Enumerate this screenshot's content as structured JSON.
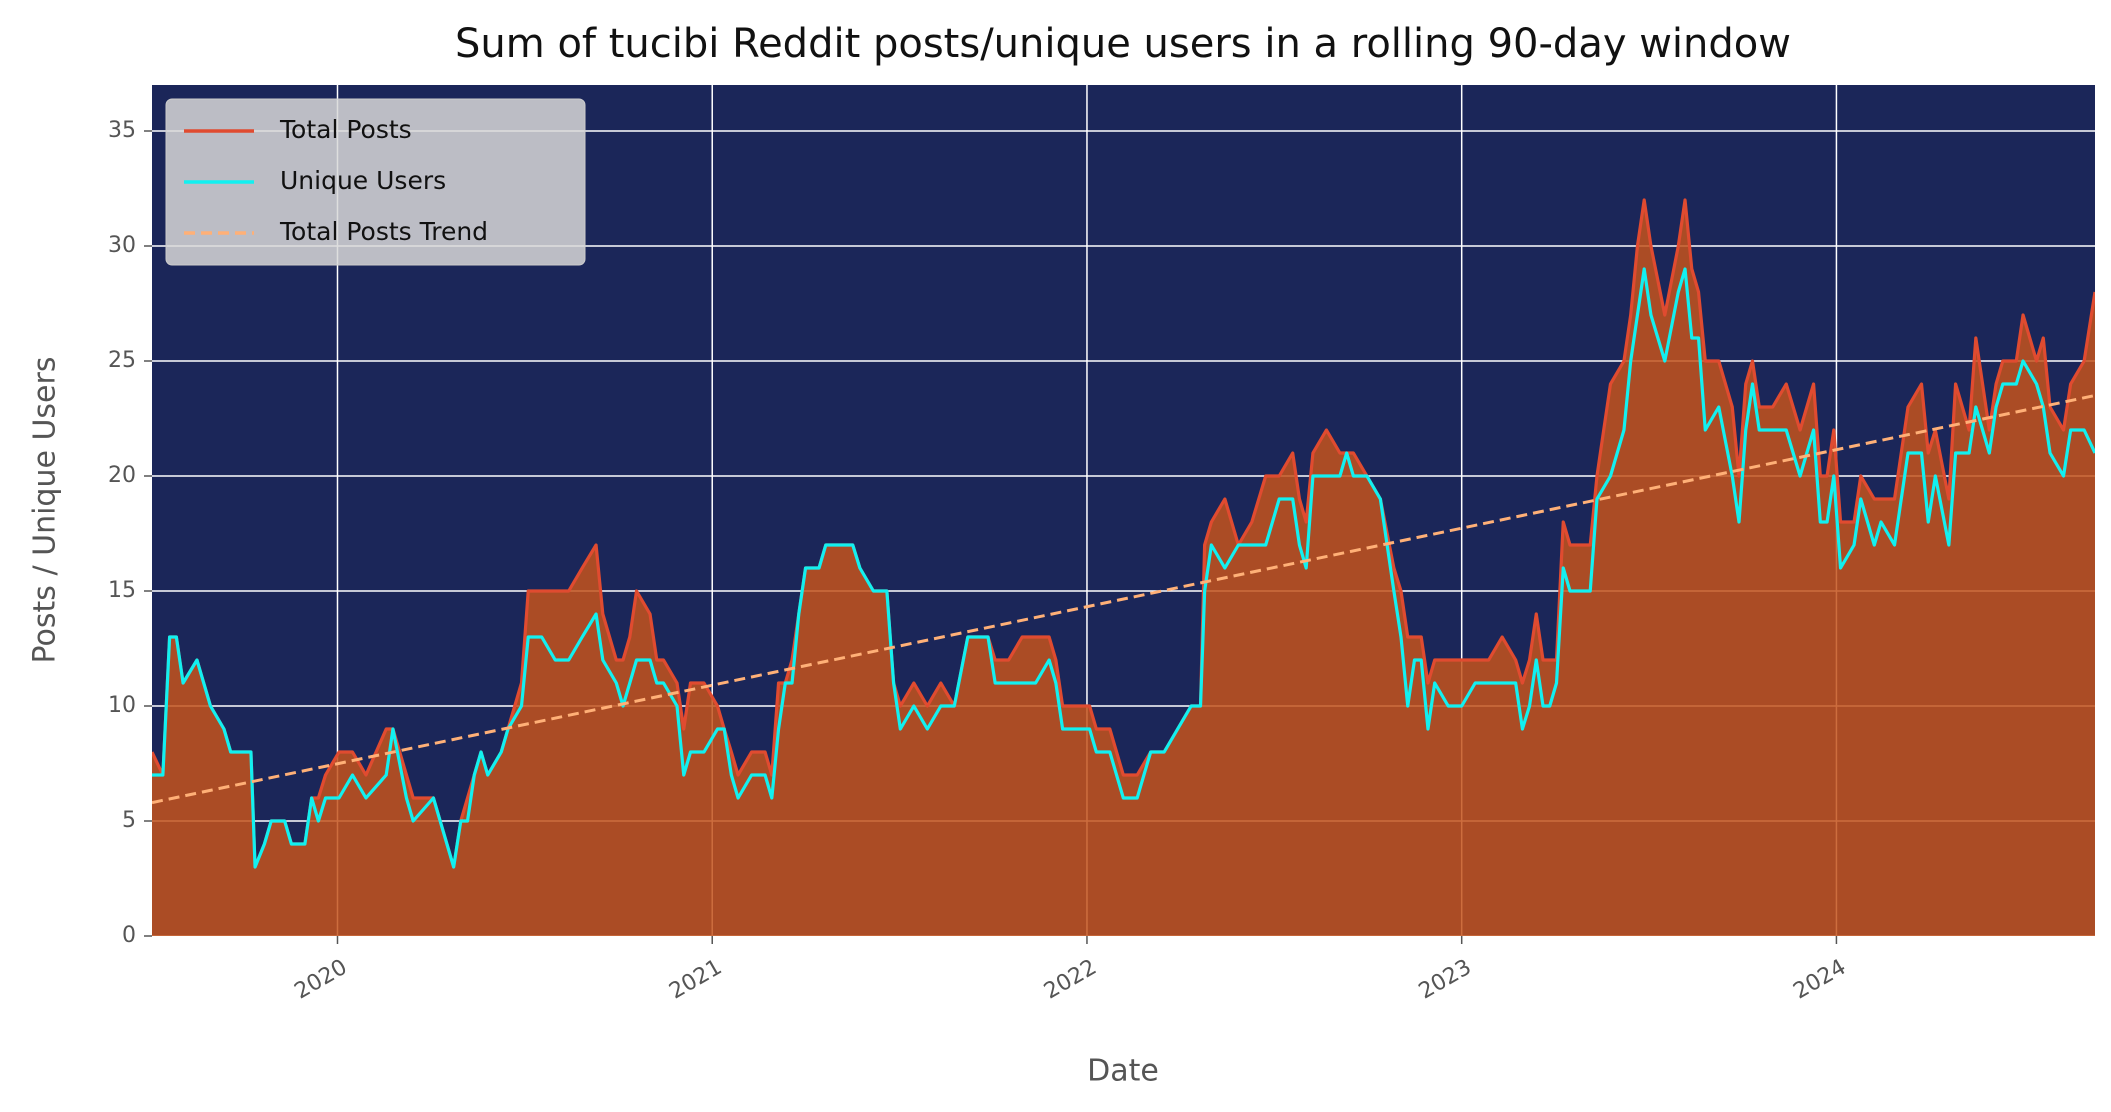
{
  "chart_data": {
    "type": "line",
    "title": "Sum of tucibi Reddit posts/unique users in a rolling 90-day window",
    "xlabel": "Date",
    "ylabel": "Posts / Unique Users",
    "xlim": [
      2019.505,
      2024.69
    ],
    "xticks": [
      2020,
      2021,
      2022,
      2023,
      2024
    ],
    "ylim": [
      0,
      37
    ],
    "yticks": [
      0,
      5,
      10,
      15,
      20,
      25,
      30,
      35
    ],
    "grid": true,
    "legend": "upper left",
    "background": "#1b2659",
    "x": [
      2019.505,
      2019.534,
      2019.552,
      2019.57,
      2019.588,
      2019.625,
      2019.643,
      2019.661,
      2019.697,
      2019.715,
      2019.769,
      2019.78,
      2019.805,
      2019.823,
      2019.859,
      2019.877,
      2019.913,
      2019.931,
      2019.949,
      2019.968,
      2020.004,
      2020.04,
      2020.076,
      2020.13,
      2020.148,
      2020.184,
      2020.202,
      2020.256,
      2020.274,
      2020.31,
      2020.329,
      2020.347,
      2020.365,
      2020.383,
      2020.401,
      2020.437,
      2020.455,
      2020.491,
      2020.509,
      2020.545,
      2020.581,
      2020.617,
      2020.653,
      2020.69,
      2020.708,
      2020.744,
      2020.762,
      2020.78,
      2020.798,
      2020.834,
      2020.852,
      2020.87,
      2020.906,
      2020.924,
      2020.942,
      2020.978,
      2021.014,
      2021.032,
      2021.051,
      2021.069,
      2021.105,
      2021.141,
      2021.159,
      2021.177,
      2021.195,
      2021.213,
      2021.231,
      2021.249,
      2021.285,
      2021.303,
      2021.375,
      2021.394,
      2021.43,
      2021.466,
      2021.484,
      2021.502,
      2021.538,
      2021.574,
      2021.61,
      2021.646,
      2021.682,
      2021.736,
      2021.755,
      2021.791,
      2021.827,
      2021.863,
      2021.899,
      2021.917,
      2021.935,
      2021.971,
      2022.007,
      2022.025,
      2022.061,
      2022.097,
      2022.134,
      2022.17,
      2022.206,
      2022.242,
      2022.278,
      2022.303,
      2022.314,
      2022.332,
      2022.368,
      2022.404,
      2022.44,
      2022.477,
      2022.513,
      2022.549,
      2022.567,
      2022.585,
      2022.603,
      2022.639,
      2022.675,
      2022.693,
      2022.711,
      2022.747,
      2022.783,
      2022.819,
      2022.838,
      2022.856,
      2022.874,
      2022.892,
      2022.91,
      2022.928,
      2022.964,
      2023.0,
      2023.036,
      2023.072,
      2023.108,
      2023.144,
      2023.162,
      2023.181,
      2023.199,
      2023.217,
      2023.235,
      2023.253,
      2023.271,
      2023.289,
      2023.325,
      2023.343,
      2023.361,
      2023.397,
      2023.433,
      2023.451,
      2023.469,
      2023.487,
      2023.505,
      2023.542,
      2023.578,
      2023.596,
      2023.614,
      2023.632,
      2023.65,
      2023.686,
      2023.722,
      2023.74,
      2023.758,
      2023.776,
      2023.794,
      2023.83,
      2023.866,
      2023.903,
      2023.939,
      2023.957,
      2023.975,
      2023.993,
      2024.011,
      2024.047,
      2024.065,
      2024.101,
      2024.119,
      2024.155,
      2024.191,
      2024.227,
      2024.245,
      2024.264,
      2024.3,
      2024.318,
      2024.354,
      2024.372,
      2024.408,
      2024.426,
      2024.444,
      2024.48,
      2024.498,
      2024.534,
      2024.552,
      2024.57,
      2024.606,
      2024.625,
      2024.661,
      2024.69
    ],
    "series": [
      {
        "name": "Total Posts",
        "color": "#e04b30",
        "fill": "#c4531c",
        "values": [
          8,
          7,
          13,
          13,
          11,
          12,
          11,
          10,
          9,
          8,
          8,
          3,
          4,
          5,
          5,
          4,
          4,
          6,
          6,
          7,
          8,
          8,
          7,
          9,
          9,
          7,
          6,
          6,
          5,
          3,
          5,
          6,
          7,
          8,
          7,
          8,
          9,
          11,
          15,
          15,
          15,
          15,
          16,
          17,
          14,
          12,
          12,
          13,
          15,
          14,
          12,
          12,
          11,
          9,
          11,
          11,
          10,
          9,
          8,
          7,
          8,
          8,
          7,
          11,
          11,
          12,
          14,
          16,
          16,
          17,
          17,
          16,
          15,
          15,
          11,
          10,
          11,
          10,
          11,
          10,
          13,
          13,
          12,
          12,
          13,
          13,
          13,
          12,
          10,
          10,
          10,
          9,
          9,
          7,
          7,
          8,
          8,
          9,
          10,
          10,
          17,
          18,
          19,
          17,
          18,
          20,
          20,
          21,
          19,
          18,
          21,
          22,
          21,
          21,
          21,
          20,
          19,
          16,
          15,
          13,
          13,
          13,
          11,
          12,
          12,
          12,
          12,
          12,
          13,
          12,
          11,
          12,
          14,
          12,
          12,
          12,
          18,
          17,
          17,
          17,
          20,
          24,
          25,
          27,
          30,
          32,
          30,
          27,
          30,
          32,
          29,
          28,
          25,
          25,
          23,
          20,
          24,
          25,
          23,
          23,
          24,
          22,
          24,
          20,
          20,
          22,
          18,
          18,
          20,
          19,
          19,
          19,
          23,
          24,
          21,
          22,
          19,
          24,
          22,
          26,
          22,
          24,
          25,
          25,
          27,
          25,
          26,
          23,
          22,
          24,
          25,
          28
        ]
      },
      {
        "name": "Unique Users",
        "color": "#12f0f0",
        "values": [
          7,
          7,
          13,
          13,
          11,
          12,
          11,
          10,
          9,
          8,
          8,
          3,
          4,
          5,
          5,
          4,
          4,
          6,
          5,
          6,
          6,
          7,
          6,
          7,
          9,
          6,
          5,
          6,
          5,
          3,
          5,
          5,
          7,
          8,
          7,
          8,
          9,
          10,
          13,
          13,
          12,
          12,
          13,
          14,
          12,
          11,
          10,
          11,
          12,
          12,
          11,
          11,
          10,
          7,
          8,
          8,
          9,
          9,
          7,
          6,
          7,
          7,
          6,
          9,
          11,
          11,
          14,
          16,
          16,
          17,
          17,
          16,
          15,
          15,
          11,
          9,
          10,
          9,
          10,
          10,
          13,
          13,
          11,
          11,
          11,
          11,
          12,
          11,
          9,
          9,
          9,
          8,
          8,
          6,
          6,
          8,
          8,
          9,
          10,
          10,
          15,
          17,
          16,
          17,
          17,
          17,
          19,
          19,
          17,
          16,
          20,
          20,
          20,
          21,
          20,
          20,
          19,
          15,
          13,
          10,
          12,
          12,
          9,
          11,
          10,
          10,
          11,
          11,
          11,
          11,
          9,
          10,
          12,
          10,
          10,
          11,
          16,
          15,
          15,
          15,
          19,
          20,
          22,
          25,
          27,
          29,
          27,
          25,
          28,
          29,
          26,
          26,
          22,
          23,
          20,
          18,
          22,
          24,
          22,
          22,
          22,
          20,
          22,
          18,
          18,
          20,
          16,
          17,
          19,
          17,
          18,
          17,
          21,
          21,
          18,
          20,
          17,
          21,
          21,
          23,
          21,
          23,
          24,
          24,
          25,
          24,
          23,
          21,
          20,
          22,
          22,
          21
        ]
      },
      {
        "name": "Total Posts Trend",
        "color": "#ffb077",
        "linestyle": "dashed",
        "x": [
          2019.505,
          2024.69
        ],
        "values": [
          5.8,
          23.5
        ]
      }
    ]
  }
}
